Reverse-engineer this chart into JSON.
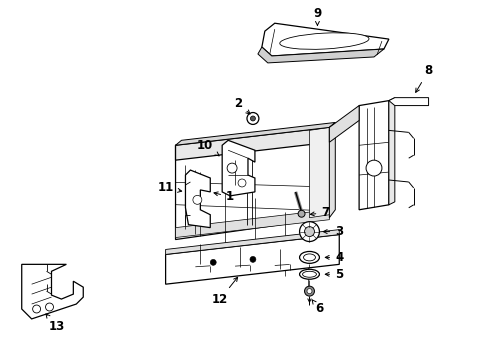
{
  "background_color": "#ffffff",
  "line_color": "#000000",
  "label_color": "#000000",
  "fig_w": 4.89,
  "fig_h": 3.6,
  "dpi": 100
}
